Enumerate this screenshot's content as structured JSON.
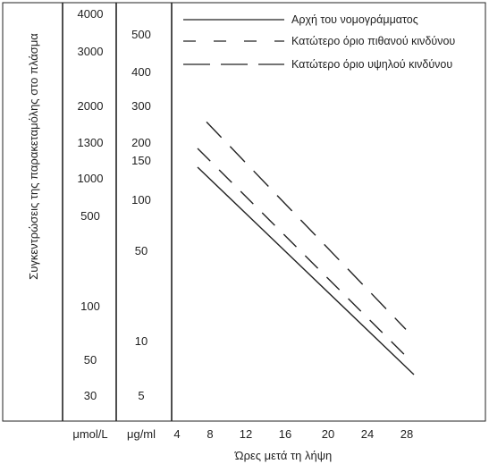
{
  "chart_data": {
    "type": "line",
    "ylabel": "Συγκεντρώσεις της παρακεταμόλης στο πλάσμα",
    "xlabel": "Ώρες μετά τη λήψη",
    "x_ticks": [
      "4",
      "8",
      "12",
      "16",
      "20",
      "24",
      "28"
    ],
    "xlim": [
      4,
      28
    ],
    "y_scale": "log",
    "y_units": [
      "μmol/L",
      "μg/ml"
    ],
    "y_ticks_umol": [
      "4000",
      "3000",
      "2000",
      "1300",
      "1000",
      "500",
      "100",
      "50",
      "30"
    ],
    "y_ticks_ugml": [
      "500",
      "400",
      "300",
      "200",
      "150",
      "100",
      "50",
      "10",
      "5"
    ],
    "legend_position": "top-right",
    "series": [
      {
        "name": "Αρχή του νομογράμματος",
        "style": "solid",
        "x": [
          4,
          28
        ],
        "y_ugml": [
          150,
          6.25
        ]
      },
      {
        "name": "Κατώτερο όριο πιθανού κινδύνου",
        "style": "dashed",
        "x": [
          4,
          28
        ],
        "y_ugml": [
          200,
          8.3
        ]
      },
      {
        "name": "Κατώτερο όριο υψηλού κινδύνου",
        "style": "longdash",
        "x": [
          4,
          28
        ],
        "y_ugml": [
          300,
          12.5
        ]
      }
    ]
  }
}
